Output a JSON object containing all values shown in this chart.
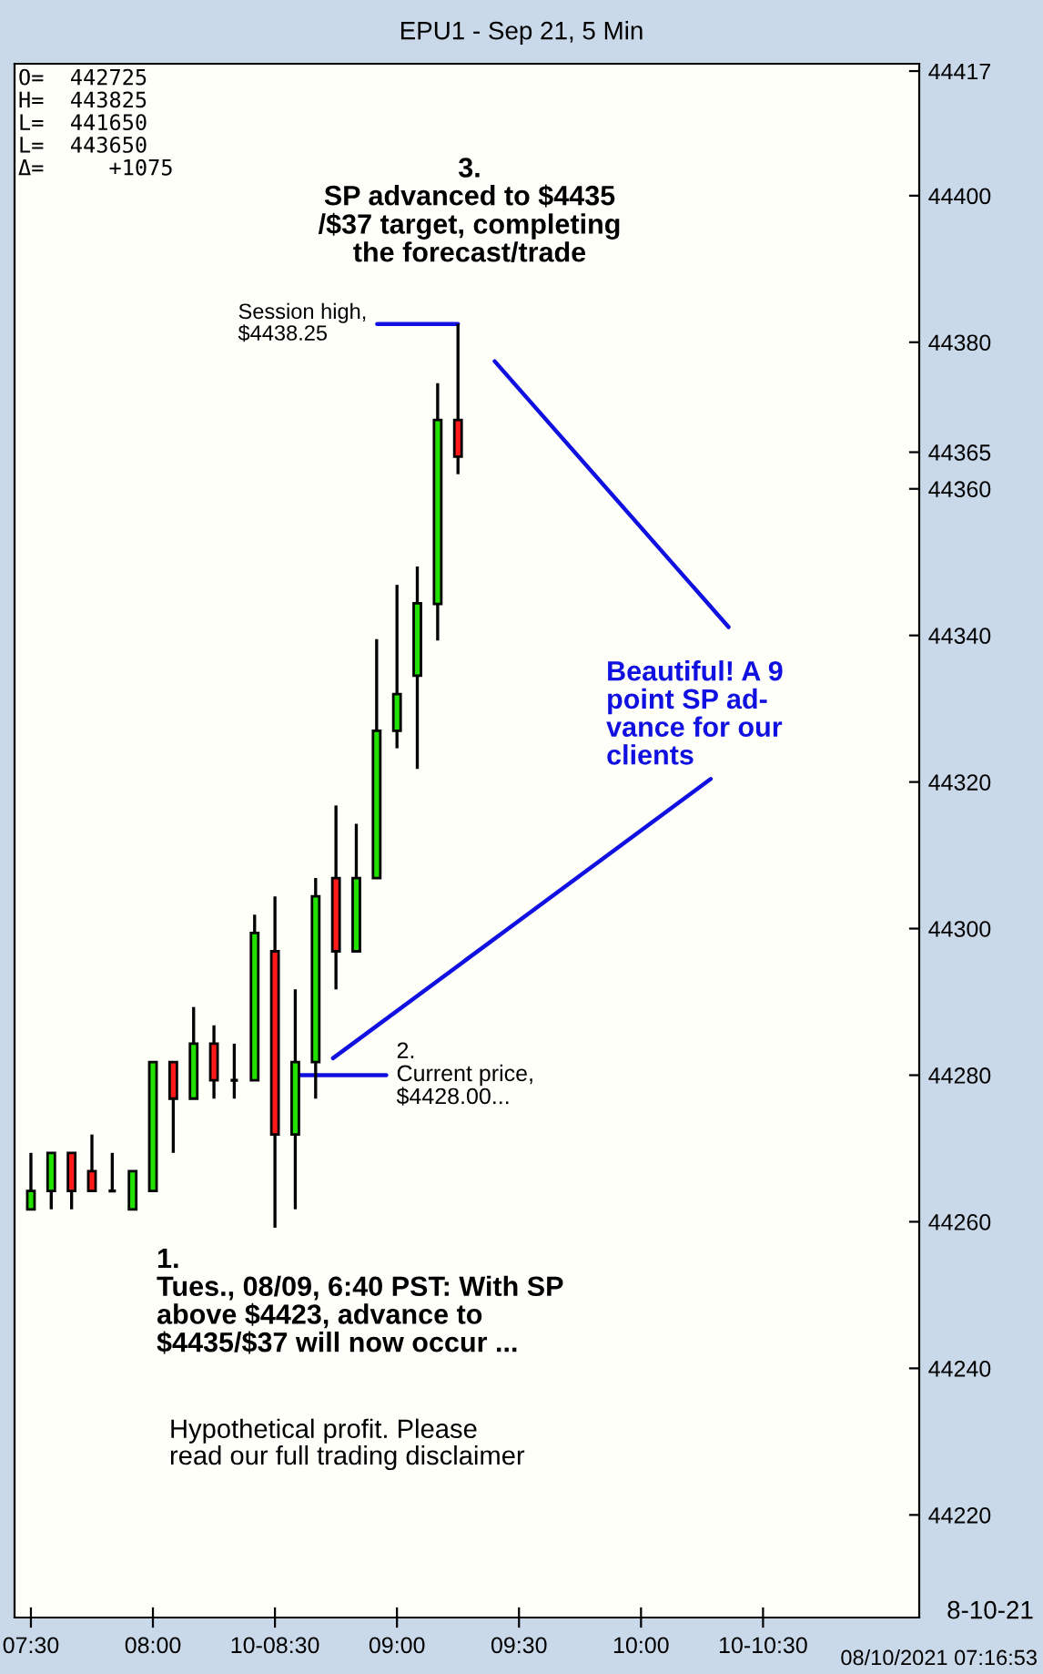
{
  "chart_data": {
    "type": "candlestick",
    "title": "EPU1 - Sep 21, 5 Min",
    "x": [
      7.5,
      7.5833,
      7.6667,
      7.75,
      7.8333,
      7.9167,
      8.0,
      8.0833,
      8.1667,
      8.25,
      8.3333,
      8.4167,
      8.5,
      8.5833,
      8.6667,
      8.75,
      8.8333,
      8.9167,
      9.0,
      9.0833,
      9.1667,
      9.25
    ],
    "ohlc": [
      [
        44261.7,
        44269.4,
        44261.7,
        44264.2
      ],
      [
        44264.2,
        44269.4,
        44261.7,
        44269.4
      ],
      [
        44269.4,
        44269.4,
        44261.7,
        44264.2
      ],
      [
        44266.9,
        44271.9,
        44264.2,
        44264.2
      ],
      [
        44264.2,
        44269.4,
        44264.2,
        44264.2
      ],
      [
        44261.7,
        44266.9,
        44261.7,
        44266.9
      ],
      [
        44264.2,
        44281.8,
        44264.2,
        44281.8
      ],
      [
        44281.8,
        44281.8,
        44269.4,
        44276.8
      ],
      [
        44276.8,
        44289.3,
        44276.8,
        44284.3
      ],
      [
        44284.3,
        44286.8,
        44276.8,
        44279.3
      ],
      [
        44279.3,
        44284.3,
        44276.8,
        44279.3
      ],
      [
        44279.3,
        44301.9,
        44279.3,
        44299.4
      ],
      [
        44296.9,
        44304.4,
        44259.2,
        44271.9
      ],
      [
        44271.9,
        44291.7,
        44261.7,
        44281.8
      ],
      [
        44281.8,
        44306.9,
        44276.8,
        44304.4
      ],
      [
        44306.9,
        44316.8,
        44291.7,
        44296.9
      ],
      [
        44296.9,
        44314.3,
        44296.9,
        44306.9
      ],
      [
        44306.9,
        44339.5,
        44306.9,
        44327.0
      ],
      [
        44327.0,
        44346.9,
        44324.6,
        44332.0
      ],
      [
        44334.5,
        44349.4,
        44321.8,
        44344.4
      ],
      [
        44344.3,
        44374.4,
        44339.3,
        44369.4
      ],
      [
        44369.4,
        44382.5,
        44362.0,
        44364.4
      ]
    ],
    "xlim": [
      7.433,
      11.14
    ],
    "xticks": [
      {
        "value": 7.5,
        "label": "07:30"
      },
      {
        "value": 8.0,
        "label": "08:00"
      },
      {
        "value": 8.5,
        "label": "10-08:30"
      },
      {
        "value": 9.0,
        "label": "09:00"
      },
      {
        "value": 9.5,
        "label": "09:30"
      },
      {
        "value": 10.0,
        "label": "10:00"
      },
      {
        "value": 10.5,
        "label": "10-10:30"
      }
    ],
    "ylim": [
      44206,
      44418
    ],
    "yticks": [
      44220,
      44240,
      44260,
      44280,
      44300,
      44320,
      44340,
      44360,
      44365,
      44380,
      44400,
      44417
    ],
    "grid": false,
    "annotations": [
      "3.\nSP advanced to $4435\n/$37 target, completing\nthe forecast/trade",
      {
        "text": "Session high,\n$4438.25",
        "x": 9.25,
        "y": 44382.5
      },
      "Beautiful! A 9\npoint SP ad-\nvance for our\nclients",
      {
        "text": "2.\nCurrent price,\n$4428.00...",
        "x": 8.5833,
        "y": 44280
      },
      "1.\nTues., 08/09, 6:40 PST: With SP\nabove $4423, advance to\n$4435/$37 will now occur ...",
      "Hypothetical profit. Please\nread our full trading disclaimer",
      "O=  442725\nH=  443825\nL=  441650\nL=  443650\nΔ=     +1075",
      "8-10-21",
      "08/10/2021 07:16:53"
    ]
  }
}
